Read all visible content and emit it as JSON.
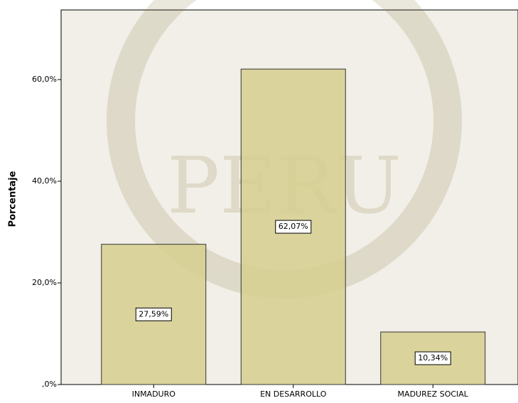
{
  "chart_data": {
    "type": "bar",
    "y_label": "Porcentaje",
    "categories": [
      "INMADURO",
      "EN DESARROLLO",
      "MADUREZ SOCIAL"
    ],
    "values": [
      27.59,
      62.07,
      10.34
    ],
    "value_labels": [
      "27,59%",
      "62,07%",
      "10,34%"
    ],
    "color": "#d6ce8e",
    "ylim": [
      0,
      73.7
    ],
    "yticks": [
      {
        "value": 0,
        "label": ",0%"
      },
      {
        "value": 20,
        "label": "20,0%"
      },
      {
        "value": 40,
        "label": "40,0%"
      },
      {
        "value": 60,
        "label": "60,0%"
      }
    ]
  }
}
